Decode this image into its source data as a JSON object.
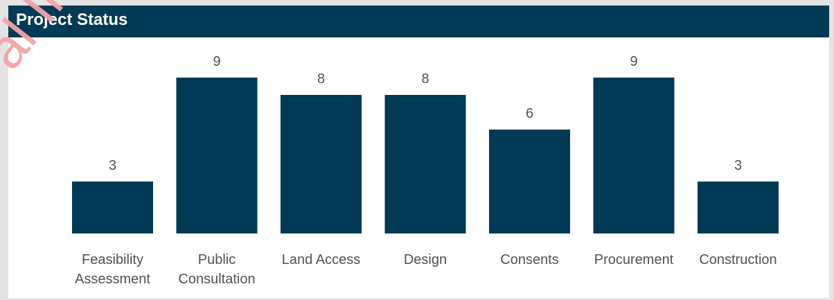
{
  "header": {
    "title": "Project Status"
  },
  "watermark": {
    "text": "al Inform"
  },
  "colors": {
    "header_bg": "#003a54",
    "bar": "#003a54",
    "label": "#505050",
    "background": "#ffffff",
    "watermark": "#f3a3a8"
  },
  "chart_data": {
    "type": "bar",
    "title": "Project Status",
    "categories": [
      [
        "Feasibility",
        "Assessment"
      ],
      [
        "Public",
        "Consultation"
      ],
      [
        "Land Access"
      ],
      [
        "Design"
      ],
      [
        "Consents"
      ],
      [
        "Procurement"
      ],
      [
        "Construction"
      ]
    ],
    "values": [
      3,
      9,
      8,
      8,
      6,
      9,
      3
    ],
    "xlabel": "",
    "ylabel": "",
    "ylim": [
      0,
      9
    ],
    "grid": false,
    "legend": "none",
    "data_labels": true
  }
}
